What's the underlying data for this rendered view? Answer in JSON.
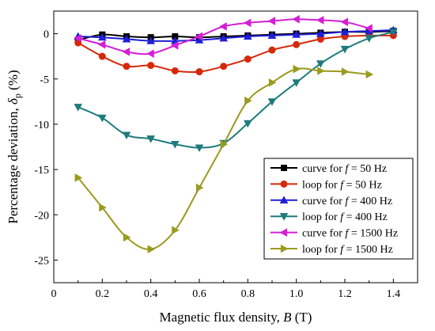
{
  "chart_data": {
    "type": "line",
    "xlabel": "Magnetic flux density, B (T)",
    "xlabel_parts": {
      "main": "Magnetic flux density, ",
      "var": "B",
      "unit": " (T)"
    },
    "ylabel": "Percentage deviation, δp (%)",
    "ylabel_parts": {
      "main": "Percentage deviation, ",
      "var": "δ",
      "sub": "p",
      "unit": " (%)"
    },
    "xlim": [
      0,
      1.5
    ],
    "ylim": [
      -27.5,
      2.5
    ],
    "xticks": [
      0,
      0.2,
      0.4,
      0.6,
      0.8,
      1.0,
      1.2,
      1.4
    ],
    "xtick_labels": [
      "0",
      "0.2",
      "0.4",
      "0.6",
      "0.8",
      "1.0",
      "1.2",
      "1.4"
    ],
    "yticks": [
      0,
      -5,
      -10,
      -15,
      -20,
      -25
    ],
    "ytick_labels": [
      "0",
      "-5",
      "-10",
      "-15",
      "-20",
      "-25"
    ],
    "grid": false,
    "legend_position": "lower-right",
    "series": [
      {
        "name": "curve for f = 50 Hz",
        "label": {
          "pre": "curve for ",
          "var": "f",
          "post": " = 50 Hz"
        },
        "color": "#000000",
        "marker": "square",
        "x": [
          0.1,
          0.2,
          0.3,
          0.4,
          0.5,
          0.6,
          0.7,
          0.8,
          0.9,
          1.0,
          1.1,
          1.2,
          1.3,
          1.4
        ],
        "y": [
          -0.7,
          -0.1,
          -0.3,
          -0.4,
          -0.3,
          -0.4,
          -0.3,
          -0.2,
          -0.1,
          0.0,
          0.1,
          0.2,
          0.2,
          0.3
        ]
      },
      {
        "name": "loop for f = 50 Hz",
        "label": {
          "pre": "loop for ",
          "var": "f",
          "post": " = 50 Hz"
        },
        "color": "#d42a0a",
        "marker": "circle",
        "x": [
          0.1,
          0.2,
          0.3,
          0.4,
          0.5,
          0.6,
          0.7,
          0.8,
          0.9,
          1.0,
          1.1,
          1.2,
          1.3,
          1.4
        ],
        "y": [
          -1.0,
          -2.5,
          -3.6,
          -3.5,
          -4.1,
          -4.2,
          -3.6,
          -2.8,
          -1.8,
          -1.2,
          -0.6,
          -0.3,
          -0.2,
          -0.2
        ]
      },
      {
        "name": "curve for f = 400 Hz",
        "label": {
          "pre": "curve for ",
          "var": "f",
          "post": " = 400 Hz"
        },
        "color": "#1f1fd6",
        "marker": "triangle-up",
        "x": [
          0.1,
          0.2,
          0.3,
          0.4,
          0.5,
          0.6,
          0.7,
          0.8,
          0.9,
          1.0,
          1.1,
          1.2,
          1.3,
          1.4
        ],
        "y": [
          -0.3,
          -0.4,
          -0.6,
          -0.8,
          -0.8,
          -0.7,
          -0.5,
          -0.3,
          -0.2,
          -0.1,
          0.0,
          0.2,
          0.3,
          0.4
        ]
      },
      {
        "name": "loop for f = 400 Hz",
        "label": {
          "pre": "loop for ",
          "var": "f",
          "post": " = 400 Hz"
        },
        "color": "#1e7b7b",
        "marker": "triangle-down",
        "x": [
          0.1,
          0.2,
          0.3,
          0.4,
          0.5,
          0.6,
          0.7,
          0.8,
          0.9,
          1.0,
          1.1,
          1.2,
          1.3,
          1.4
        ],
        "y": [
          -8.1,
          -9.3,
          -11.2,
          -11.6,
          -12.2,
          -12.6,
          -12.1,
          -9.9,
          -7.5,
          -5.4,
          -3.3,
          -1.7,
          -0.5,
          0.2
        ]
      },
      {
        "name": "curve for f = 1500 Hz",
        "label": {
          "pre": "curve for ",
          "var": "f",
          "post": " = 1500 Hz"
        },
        "color": "#d41ed4",
        "marker": "triangle-left",
        "x": [
          0.1,
          0.2,
          0.3,
          0.4,
          0.5,
          0.6,
          0.7,
          0.8,
          0.9,
          1.0,
          1.1,
          1.2,
          1.3
        ],
        "y": [
          -0.5,
          -1.2,
          -2.0,
          -2.2,
          -1.3,
          -0.3,
          0.8,
          1.2,
          1.4,
          1.6,
          1.5,
          1.3,
          0.6
        ]
      },
      {
        "name": "loop for f = 1500 Hz",
        "label": {
          "pre": "loop for ",
          "var": "f",
          "post": " = 1500 Hz"
        },
        "color": "#9a9a1e",
        "marker": "triangle-right",
        "x": [
          0.1,
          0.2,
          0.3,
          0.4,
          0.5,
          0.6,
          0.7,
          0.8,
          0.9,
          1.0,
          1.1,
          1.2,
          1.3
        ],
        "y": [
          -15.9,
          -19.2,
          -22.5,
          -23.8,
          -21.7,
          -17.0,
          -12.2,
          -7.4,
          -5.4,
          -3.9,
          -4.1,
          -4.2,
          -4.5
        ]
      }
    ]
  }
}
